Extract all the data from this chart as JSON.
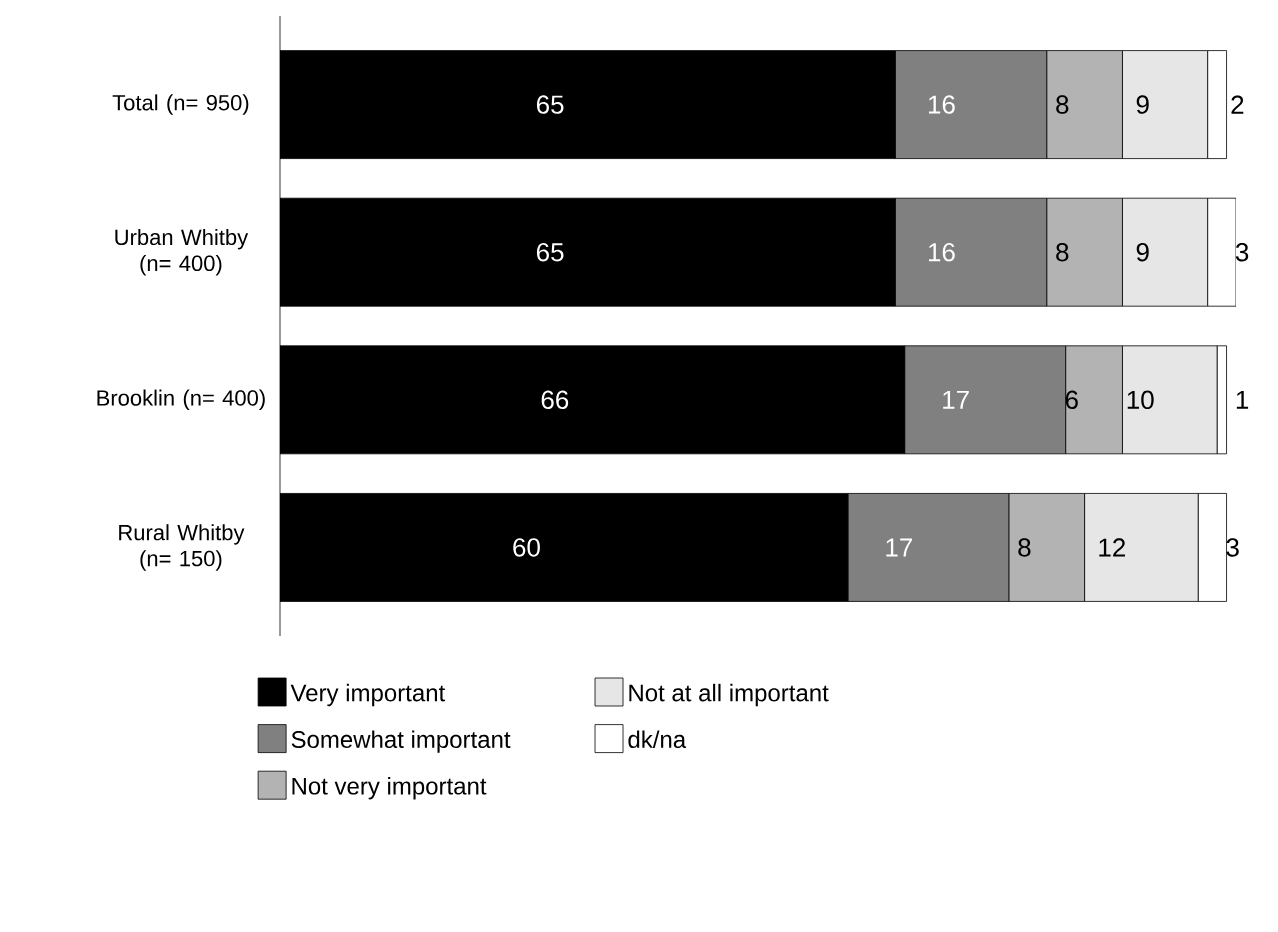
{
  "chart_data": {
    "type": "bar",
    "orientation": "horizontal",
    "stacked": true,
    "data_labels": true,
    "legend": "bottom",
    "categories": [
      "Total (n= 950)",
      "Urban Whitby (n= 400)",
      "Brooklin (n= 400)",
      "Rural Whitby (n= 150)"
    ],
    "series": [
      {
        "name": "Very important",
        "color": "#000000",
        "values": [
          65,
          65,
          66,
          60
        ]
      },
      {
        "name": "Somewhat important",
        "color": "#808080",
        "values": [
          16,
          16,
          17,
          17
        ]
      },
      {
        "name": "Not very important",
        "color": "#b3b3b3",
        "values": [
          8,
          8,
          6,
          8
        ]
      },
      {
        "name": "Not at all important",
        "color": "#e6e6e6",
        "values": [
          9,
          9,
          10,
          12
        ]
      },
      {
        "name": "dk/na",
        "color": "#ffffff",
        "values": [
          2,
          3,
          1,
          3
        ]
      }
    ]
  }
}
